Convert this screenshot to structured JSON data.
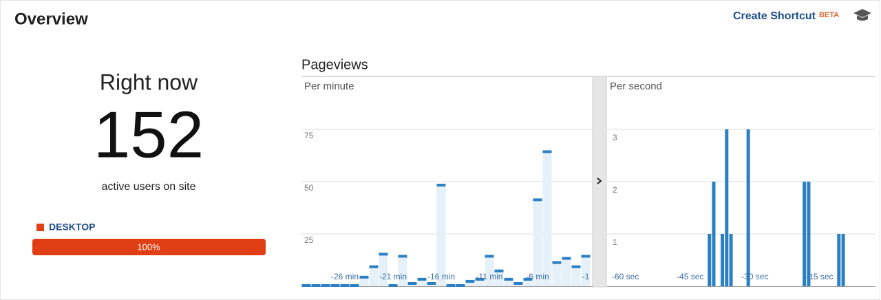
{
  "header": {
    "title": "Overview",
    "shortcut": "Create Shortcut",
    "badge": "BETA"
  },
  "right_now": {
    "title": "Right now",
    "active_users": 152,
    "caption": "active users on site",
    "segments": [
      {
        "name": "DESKTOP",
        "color": "#e03e14",
        "share": {
          "value": 100,
          "label": "100%"
        }
      }
    ]
  },
  "pageviews_title": "Pageviews",
  "chart_data": [
    {
      "type": "bar",
      "title": "Per minute",
      "color": "#2a7fc5",
      "categories": [
        null,
        null,
        null,
        null,
        "-26 min",
        null,
        null,
        null,
        null,
        "-21 min",
        null,
        null,
        null,
        null,
        "-16 min",
        null,
        null,
        null,
        null,
        "-11 min",
        null,
        null,
        null,
        null,
        "-6 min",
        null,
        null,
        null,
        null,
        "-1"
      ],
      "values": [
        0,
        0,
        0,
        0,
        0,
        0,
        4,
        9,
        15,
        0,
        14,
        1,
        3,
        1,
        48,
        0,
        0,
        2,
        3,
        14,
        7,
        3,
        1,
        3,
        41,
        64,
        11,
        13,
        9,
        14
      ],
      "ylim": [
        0,
        100
      ],
      "yticks": [
        25,
        50,
        75
      ],
      "grid": true
    },
    {
      "type": "bar",
      "title": "Per second",
      "color": "#2a7fc5",
      "categories": [
        "-60 sec",
        null,
        null,
        null,
        null,
        null,
        null,
        null,
        null,
        null,
        null,
        null,
        null,
        null,
        null,
        "-45 sec",
        null,
        null,
        null,
        null,
        null,
        null,
        null,
        null,
        null,
        null,
        null,
        null,
        null,
        null,
        "-30 sec",
        null,
        null,
        null,
        null,
        null,
        null,
        null,
        null,
        null,
        null,
        null,
        null,
        null,
        null,
        "-15 sec",
        null,
        null,
        null,
        null,
        null,
        null,
        null,
        null,
        null,
        null,
        null,
        null,
        null,
        null
      ],
      "values": [
        0,
        0,
        0,
        0,
        0,
        0,
        0,
        0,
        0,
        0,
        0,
        0,
        0,
        0,
        0,
        0,
        0,
        0,
        0,
        0,
        0,
        0,
        0,
        1,
        2,
        0,
        1,
        3,
        1,
        0,
        0,
        0,
        3,
        0,
        0,
        0,
        0,
        0,
        0,
        0,
        0,
        0,
        0,
        0,
        0,
        2,
        2,
        0,
        0,
        0,
        0,
        0,
        0,
        1,
        1,
        0,
        0,
        0,
        0,
        0
      ],
      "ylim": [
        0,
        4
      ],
      "yticks": [
        1,
        2,
        3
      ],
      "grid": true
    }
  ]
}
